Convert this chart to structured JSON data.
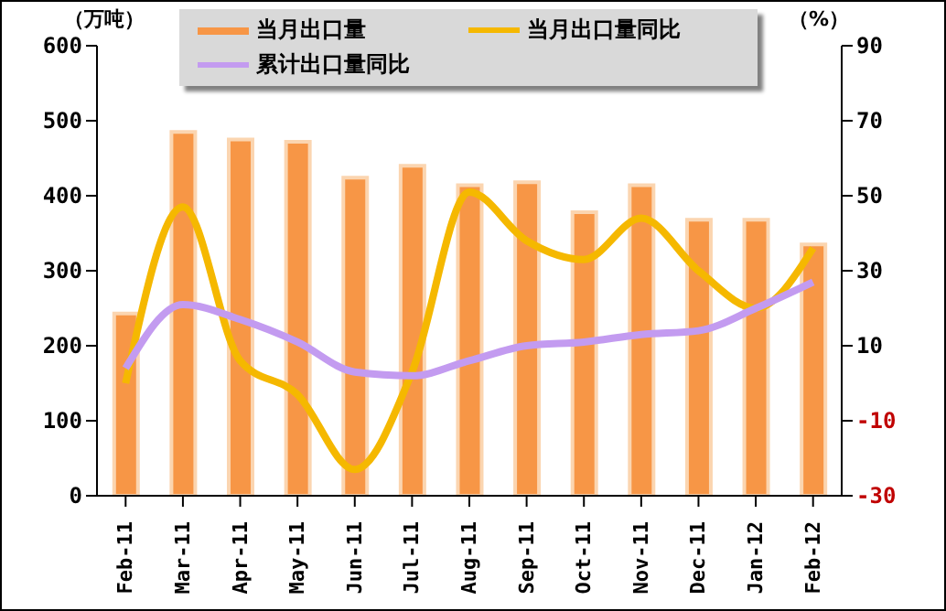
{
  "chart_data": {
    "type": "bar",
    "ylabel": "（万吨）",
    "y2label": "（%）",
    "categories": [
      "Feb-11",
      "Mar-11",
      "Apr-11",
      "May-11",
      "Jun-11",
      "Jul-11",
      "Aug-11",
      "Sep-11",
      "Oct-11",
      "Nov-11",
      "Dec-11",
      "Jan-12",
      "Feb-12"
    ],
    "series": [
      {
        "name": "当月出口量",
        "color": "#f79646",
        "values": [
          243,
          485,
          475,
          472,
          424,
          440,
          414,
          418,
          378,
          414,
          368,
          368,
          335
        ]
      },
      {
        "name": "当月出口量同比",
        "type": "line",
        "axis": "y2",
        "color": "#f5b800",
        "values": [
          0,
          47,
          6,
          -3,
          -23,
          3,
          51,
          38,
          33,
          44,
          30,
          20,
          36
        ]
      },
      {
        "name": "累计出口量同比",
        "type": "line",
        "axis": "y2",
        "color": "#c39bf0",
        "values": [
          4,
          21,
          17,
          11,
          3,
          2,
          6,
          10,
          11,
          13,
          14,
          20,
          27
        ]
      }
    ],
    "ylim": [
      0,
      600
    ],
    "yticks": [
      0,
      100,
      200,
      300,
      400,
      500,
      600
    ],
    "y2lim": [
      -30,
      90
    ],
    "y2ticks": [
      -30,
      -10,
      10,
      30,
      50,
      70,
      90
    ],
    "grid": false,
    "legend": "top",
    "marker": "none",
    "line_style": "solid"
  }
}
